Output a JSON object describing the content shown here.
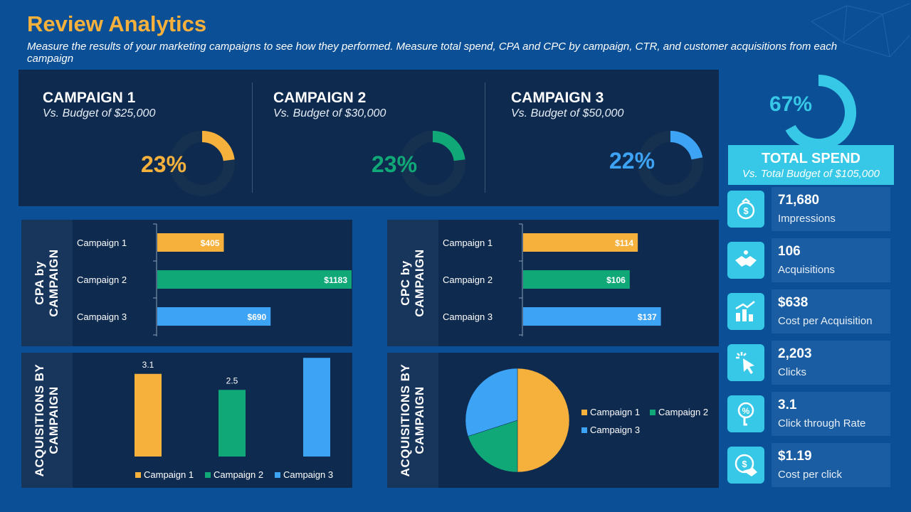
{
  "header": {
    "title": "Review Analytics",
    "subtitle": "Measure the results of your marketing campaigns to see how they performed. Measure total spend, CPA and CPC by campaign, CTR, and customer acquisitions from each campaign"
  },
  "colors": {
    "campaign1": "#f6b03c",
    "campaign2": "#10a877",
    "campaign3": "#3da3f5",
    "accent": "#36c8e6"
  },
  "campaigns": [
    {
      "name": "CAMPAIGN 1",
      "budget": "Vs. Budget of $25,000",
      "pct_label": "23%",
      "pct": 23
    },
    {
      "name": "CAMPAIGN 2",
      "budget": "Vs. Budget of $30,000",
      "pct_label": "23%",
      "pct": 23
    },
    {
      "name": "CAMPAIGN 3",
      "budget": "Vs. Budget of $50,000",
      "pct_label": "22%",
      "pct": 22
    }
  ],
  "total_spend": {
    "pct_label": "67%",
    "pct": 67,
    "title": "TOTAL SPEND",
    "subtitle": "Vs. Total Budget of $105,000"
  },
  "stats": [
    {
      "icon": "money-bag-icon",
      "value": "71,680",
      "label": "Impressions"
    },
    {
      "icon": "handshake-icon",
      "value": "106",
      "label": "Acquisitions"
    },
    {
      "icon": "growth-chart-icon",
      "value": "$638",
      "label": "Cost per Acquisition"
    },
    {
      "icon": "cursor-click-icon",
      "value": "2,203",
      "label": "Clicks"
    },
    {
      "icon": "percent-click-icon",
      "value": "3.1",
      "label": "Click through  Rate"
    },
    {
      "icon": "coin-hand-icon",
      "value": "$1.19",
      "label": "Cost per click"
    }
  ],
  "chart_data": [
    {
      "id": "cpa",
      "type": "bar",
      "orientation": "horizontal",
      "title": "CPA by CAMPAIGN",
      "categories": [
        "Campaign 1",
        "Campaign 2",
        "Campaign 3"
      ],
      "values": [
        405,
        1183,
        690
      ],
      "labels": [
        "$405",
        "$1183",
        "$690"
      ],
      "xlim": [
        0,
        1300
      ]
    },
    {
      "id": "cpc",
      "type": "bar",
      "orientation": "horizontal",
      "title": "CPC by CAMPAIGN",
      "categories": [
        "Campaign 1",
        "Campaign 2",
        "Campaign 3"
      ],
      "values": [
        114,
        106,
        137
      ],
      "labels": [
        "$114",
        "$106",
        "$137"
      ],
      "xlim": [
        0,
        150
      ]
    },
    {
      "id": "acq-bar",
      "type": "bar",
      "title": "ACQUISITIONS BY CAMPAIGN",
      "categories": [
        "Campaign 1",
        "Campaign 2",
        "Campaign 3"
      ],
      "values": [
        3.1,
        2.5,
        3.7
      ],
      "labels": [
        "3.1",
        "2.5",
        "3.7"
      ],
      "ylim": [
        0,
        4
      ],
      "legend": "bottom"
    },
    {
      "id": "acq-pie",
      "type": "pie",
      "title": "ACQUISITIONS BY CAMPAIGN",
      "categories": [
        "Campaign 1",
        "Campaign 2",
        "Campaign 3"
      ],
      "values": [
        50,
        20,
        30
      ],
      "legend": "right"
    }
  ]
}
